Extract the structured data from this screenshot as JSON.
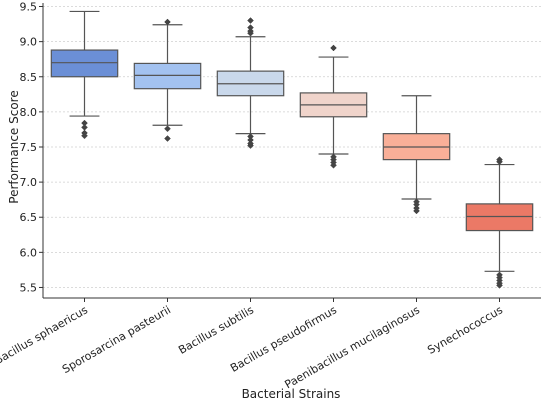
{
  "chart_data": {
    "type": "box",
    "title": "",
    "xlabel": "Bacterial Strains",
    "ylabel": "Performance Score",
    "ylim": [
      5.35,
      9.55
    ],
    "yticks": [
      5.5,
      6.0,
      6.5,
      7.0,
      7.5,
      8.0,
      8.5,
      9.0,
      9.5
    ],
    "ytick_labels": [
      "5.5",
      "6.0",
      "6.5",
      "7.0",
      "7.5",
      "8.0",
      "8.5",
      "9.0",
      "9.5"
    ],
    "grid": "horizontal-dashed",
    "categories": [
      "Bacillus sphaericus",
      "Sporosarcina pasteurii",
      "Bacillus subtilis",
      "Bacillus pseudofirmus",
      "Paenibacillus mucilaginosus",
      "Synechococcus"
    ],
    "boxes": [
      {
        "whisker_low": 7.94,
        "q1": 8.5,
        "median": 8.7,
        "q3": 8.88,
        "whisker_high": 9.43,
        "outliers": [
          7.84,
          7.78,
          7.7,
          7.66
        ],
        "color": "#6b8fd6"
      },
      {
        "whisker_low": 7.81,
        "q1": 8.33,
        "median": 8.52,
        "q3": 8.69,
        "whisker_high": 9.24,
        "outliers": [
          9.28,
          7.76,
          7.62
        ],
        "color": "#a3c2f0"
      },
      {
        "whisker_low": 7.69,
        "q1": 8.23,
        "median": 8.4,
        "q3": 8.58,
        "whisker_high": 9.07,
        "outliers": [
          9.3,
          9.2,
          9.15,
          9.12,
          7.65,
          7.6,
          7.55,
          7.52
        ],
        "color": "#c9d8eb"
      },
      {
        "whisker_low": 7.4,
        "q1": 7.93,
        "median": 8.1,
        "q3": 8.27,
        "whisker_high": 8.78,
        "outliers": [
          8.91,
          7.36,
          7.32,
          7.28,
          7.24
        ],
        "color": "#f0d4cb"
      },
      {
        "whisker_low": 6.76,
        "q1": 7.32,
        "median": 7.5,
        "q3": 7.69,
        "whisker_high": 8.23,
        "outliers": [
          6.72,
          6.68,
          6.63,
          6.59
        ],
        "color": "#f9af98"
      },
      {
        "whisker_low": 5.73,
        "q1": 6.31,
        "median": 6.51,
        "q3": 6.69,
        "whisker_high": 7.25,
        "outliers": [
          7.32,
          7.29,
          5.68,
          5.64,
          5.6,
          5.56,
          5.53
        ],
        "color": "#eb7966"
      }
    ]
  }
}
